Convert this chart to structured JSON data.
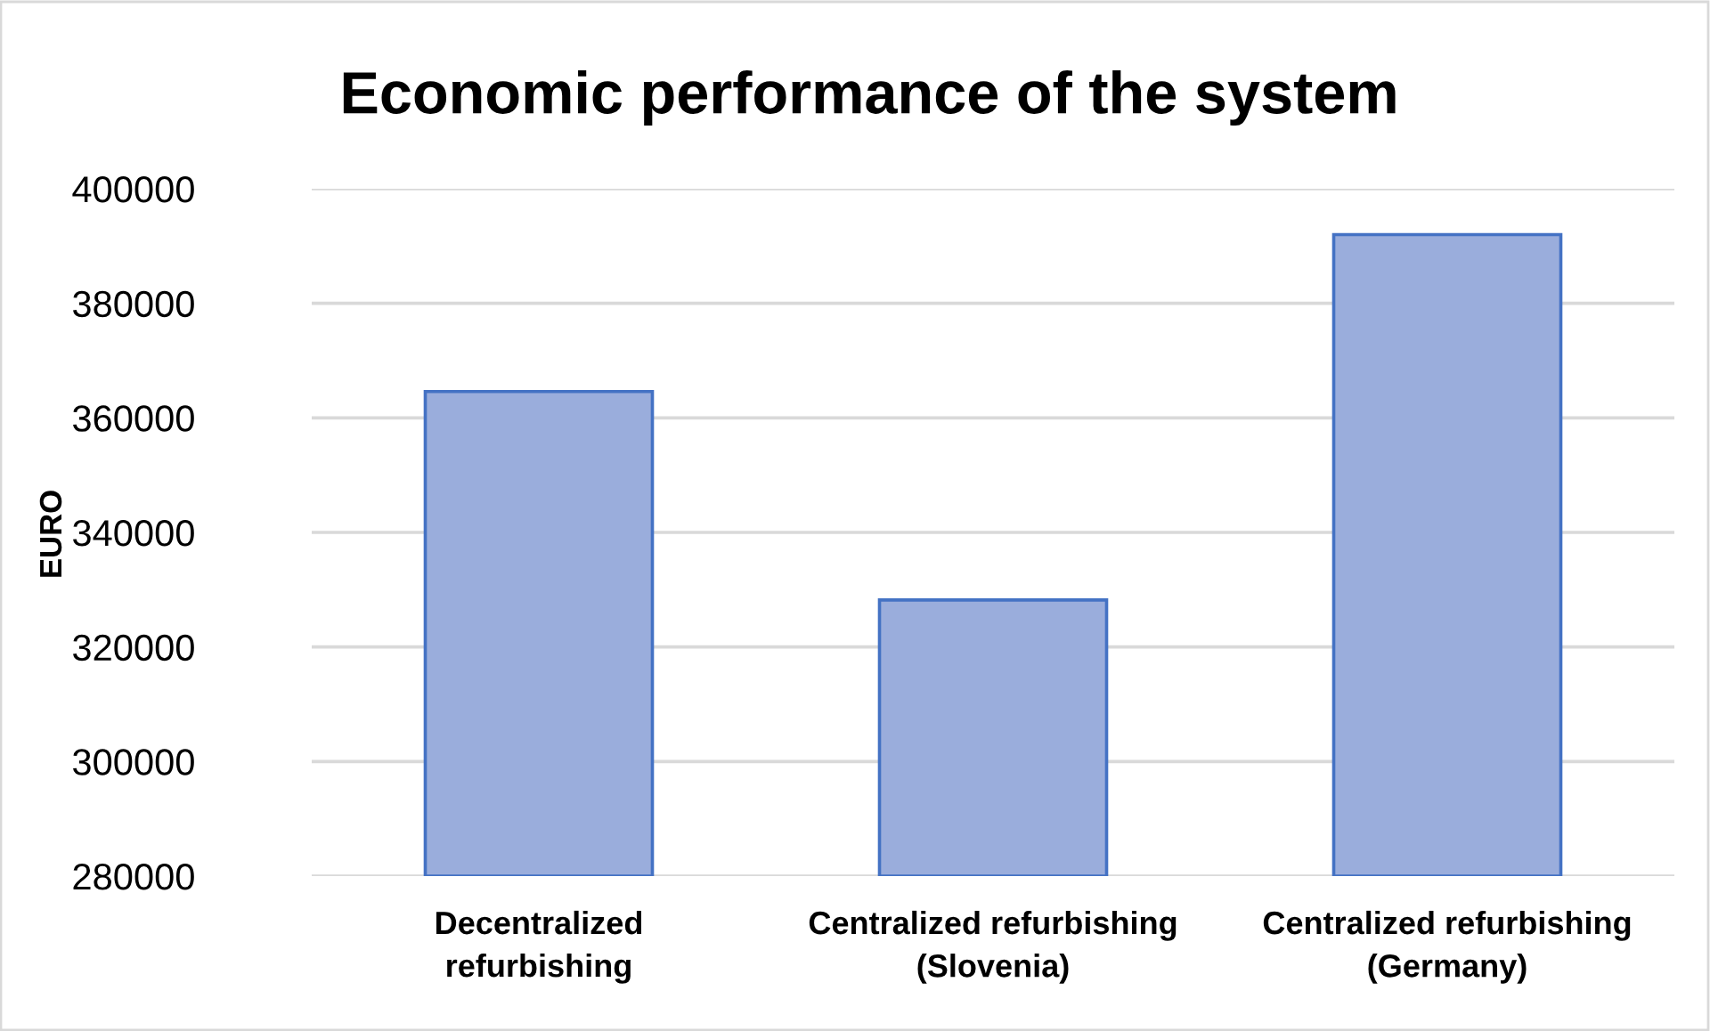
{
  "chart_data": {
    "type": "bar",
    "title": "Economic performance of the system",
    "ylabel": "EURO",
    "categories": [
      "Decentralized\nrefurbishing",
      "Centralized refurbishing\n(Slovenia)",
      "Centralized refurbishing\n(Germany)"
    ],
    "values": [
      364600,
      328200,
      392000
    ],
    "color": "#9aaddc",
    "ylim": [
      280000,
      400000
    ],
    "yticks": [
      280000,
      300000,
      320000,
      340000,
      360000,
      380000,
      400000
    ],
    "grid": "y"
  }
}
